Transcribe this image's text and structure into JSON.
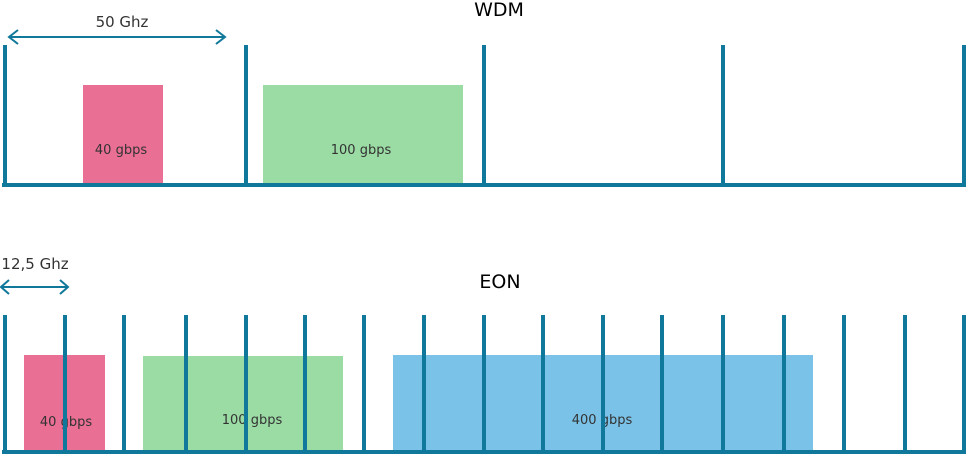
{
  "colors": {
    "grid_line": "#10789a",
    "rate_40": "#e96f95",
    "rate_100": "#9bdca5",
    "rate_400": "#7ac2e8",
    "arrow": "#10789a"
  },
  "wdm": {
    "title": "WDM",
    "spacing_label": "50 Ghz",
    "channels": [
      {
        "label": "40 gbps",
        "color_key": "rate_40"
      },
      {
        "label": "100 gbps",
        "color_key": "rate_100"
      }
    ]
  },
  "eon": {
    "title": "EON",
    "spacing_label": "12,5 Ghz",
    "channels": [
      {
        "label": "40 gbps",
        "color_key": "rate_40"
      },
      {
        "label": "100 gbps",
        "color_key": "rate_100"
      },
      {
        "label": "400 gbps",
        "color_key": "rate_400"
      }
    ]
  }
}
